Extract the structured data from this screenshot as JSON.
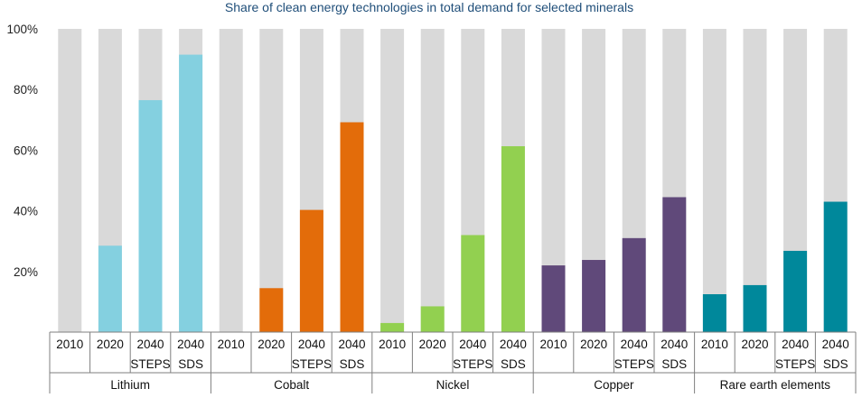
{
  "chart_data": {
    "type": "bar",
    "title": "Share of clean energy technologies in total demand for selected minerals",
    "xlabel": "",
    "ylabel": "",
    "ylim": [
      0,
      100
    ],
    "yticks": [
      20,
      40,
      60,
      80,
      100
    ],
    "ytick_labels": [
      "20%",
      "40%",
      "60%",
      "80%",
      "100%"
    ],
    "grid": false,
    "legend": null,
    "background_bar_value": 100,
    "background_color": "#d9d9d9",
    "groups": [
      {
        "name": "Lithium",
        "color": "#84d0e0",
        "bars": [
          {
            "label_line1": "2010",
            "label_line2": "",
            "value": 0
          },
          {
            "label_line1": "2020",
            "label_line2": "",
            "value": 28.5
          },
          {
            "label_line1": "2040",
            "label_line2": "STEPS",
            "value": 76.5
          },
          {
            "label_line1": "2040",
            "label_line2": "SDS",
            "value": 91.5
          }
        ]
      },
      {
        "name": "Cobalt",
        "color": "#e36c0a",
        "bars": [
          {
            "label_line1": "2010",
            "label_line2": "",
            "value": 0
          },
          {
            "label_line1": "2020",
            "label_line2": "",
            "value": 14.5
          },
          {
            "label_line1": "2040",
            "label_line2": "STEPS",
            "value": 40.3
          },
          {
            "label_line1": "2040",
            "label_line2": "SDS",
            "value": 69.2
          }
        ]
      },
      {
        "name": "Nickel",
        "color": "#92d050",
        "bars": [
          {
            "label_line1": "2010",
            "label_line2": "",
            "value": 3
          },
          {
            "label_line1": "2020",
            "label_line2": "",
            "value": 8.5
          },
          {
            "label_line1": "2040",
            "label_line2": "STEPS",
            "value": 32
          },
          {
            "label_line1": "2040",
            "label_line2": "SDS",
            "value": 61.3
          }
        ]
      },
      {
        "name": "Copper",
        "color": "#60497a",
        "bars": [
          {
            "label_line1": "2010",
            "label_line2": "",
            "value": 22
          },
          {
            "label_line1": "2020",
            "label_line2": "",
            "value": 23.8
          },
          {
            "label_line1": "2040",
            "label_line2": "STEPS",
            "value": 31
          },
          {
            "label_line1": "2040",
            "label_line2": "SDS",
            "value": 44.5
          }
        ]
      },
      {
        "name": "Rare earth elements",
        "color": "#00889b",
        "bars": [
          {
            "label_line1": "2010",
            "label_line2": "",
            "value": 12.5
          },
          {
            "label_line1": "2020",
            "label_line2": "",
            "value": 15.5
          },
          {
            "label_line1": "2040",
            "label_line2": "STEPS",
            "value": 26.8
          },
          {
            "label_line1": "2040",
            "label_line2": "SDS",
            "value": 43
          }
        ]
      }
    ],
    "title_color": "#1f4e79",
    "axis_line_color": "#7f7f7f"
  }
}
